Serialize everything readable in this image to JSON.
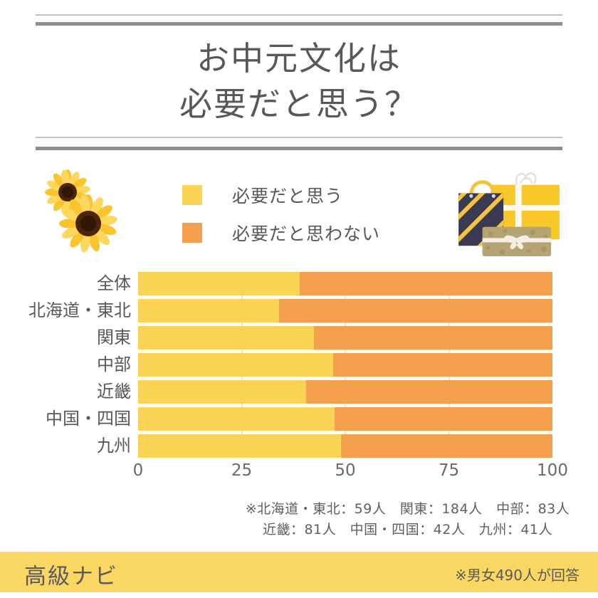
{
  "title": {
    "line1": "お中元文化は",
    "line2": "必要だと思う？"
  },
  "legend": [
    {
      "label": "必要だと思う",
      "color": "#fbd455"
    },
    {
      "label": "必要だと思わない",
      "color": "#f5a04c"
    }
  ],
  "chart_data": {
    "type": "bar",
    "orientation": "horizontal",
    "stacked": true,
    "categories": [
      "全体",
      "北海道・東北",
      "関東",
      "中部",
      "近畿",
      "中国・四国",
      "九州"
    ],
    "series": [
      {
        "name": "必要だと思う",
        "color": "#fbd455",
        "values": [
          39,
          34,
          42.5,
          47,
          40.5,
          47.5,
          49
        ]
      },
      {
        "name": "必要だと思わない",
        "color": "#f5a04c",
        "values": [
          61,
          66,
          57.5,
          53,
          59.5,
          52.5,
          51
        ]
      }
    ],
    "xlim": [
      0,
      100
    ],
    "x_ticks": [
      0,
      25,
      50,
      75,
      100
    ],
    "grid": "faint vertical lines at 25/50/75 visible between bars",
    "legend_position": "top-center"
  },
  "footnote": {
    "line1": "※北海道・東北：59人　関東：184人　中部：83人",
    "line2": "近畿：81人　中国・四国：42人　九州：41人"
  },
  "footer": {
    "brand": "高級ナビ",
    "note": "※男女490人が回答",
    "background": "#fad763"
  },
  "colors": {
    "yes": "#fbd455",
    "no": "#f5a04c",
    "text": "#57585c",
    "rule_thin": "#c2c2c2",
    "rule_thick": "#8e8e8e"
  },
  "decorations": {
    "left": "sunflowers",
    "right": "gift bag and gift boxes"
  }
}
